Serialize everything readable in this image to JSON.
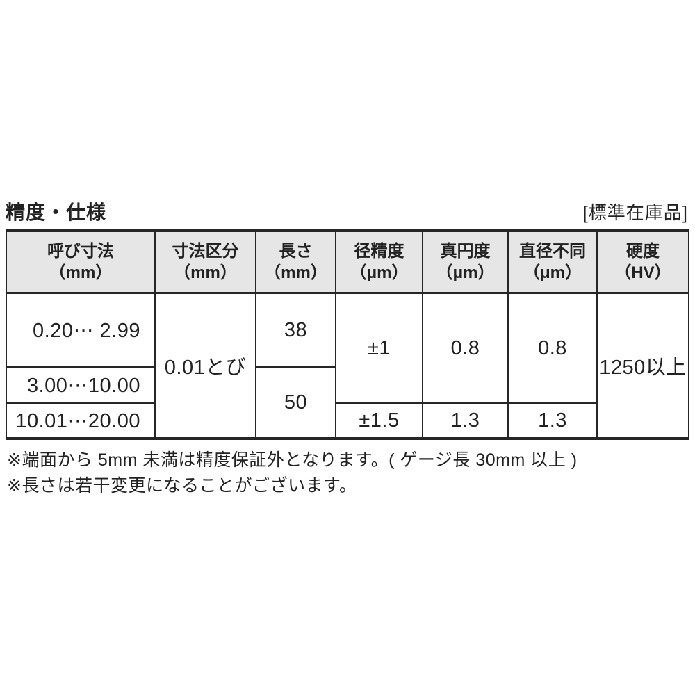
{
  "title": "精度・仕様",
  "stock_label": "[標準在庫品]",
  "table": {
    "columns": [
      {
        "name": "呼び寸法",
        "unit": "（mm）"
      },
      {
        "name": "寸法区分",
        "unit": "（mm）"
      },
      {
        "name": "長さ",
        "unit": "（mm）"
      },
      {
        "name": "径精度",
        "unit": "（μm）"
      },
      {
        "name": "真円度",
        "unit": "（μm）"
      },
      {
        "name": "直径不同",
        "unit": "（μm）"
      },
      {
        "name": "硬度",
        "unit": "（HV）"
      }
    ],
    "cells": {
      "nominal_1": "0.20⋯ 2.99",
      "nominal_2": "3.00⋯10.00",
      "nominal_3": "10.01⋯20.00",
      "division": "0.01とび",
      "length_38": "38",
      "length_50": "50",
      "dia_accuracy_1": "±1",
      "dia_accuracy_2": "±1.5",
      "roundness_1": "0.8",
      "roundness_2": "1.3",
      "dia_variation_1": "0.8",
      "dia_variation_2": "1.3",
      "hardness": "1250以上"
    }
  },
  "notes": [
    "※端面から 5mm 未満は精度保証外となります。( ゲージ長 30mm 以上 )",
    "※長さは若干変更になることがございます。"
  ],
  "colors": {
    "border_color": "#262626",
    "header_bg": "#e6e6e6",
    "text_color": "#222222",
    "page_bg": "#ffffff"
  }
}
